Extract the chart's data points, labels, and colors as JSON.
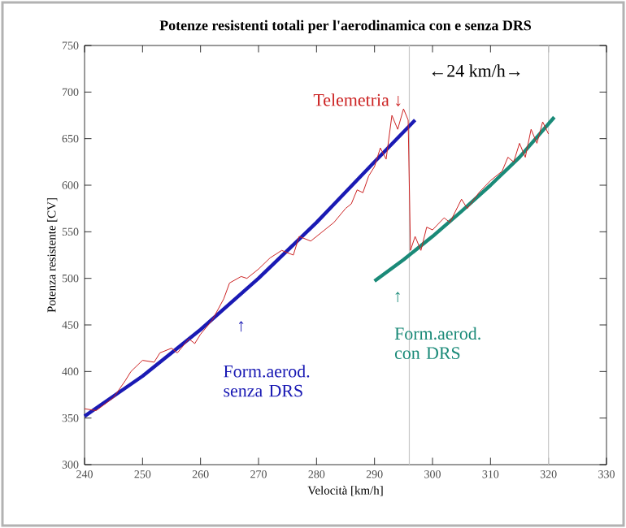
{
  "chart_data": {
    "type": "line",
    "title": "Potenze resistenti totali per l'aerodinamica con e senza DRS",
    "xlabel": "Velocità  [km/h]",
    "ylabel": "Potenza resistente  [CV]",
    "xlim": [
      240,
      330
    ],
    "xticks": [
      240,
      250,
      260,
      270,
      280,
      290,
      300,
      310,
      320,
      330
    ],
    "ylim": [
      300,
      750
    ],
    "yticks": [
      300,
      350,
      400,
      450,
      500,
      550,
      600,
      650,
      700,
      750
    ],
    "grid": false,
    "marker": "none",
    "line_style": "solid",
    "series": [
      {
        "color": "#cc2222",
        "x": [
          240,
          242,
          245,
          247,
          248,
          250,
          252,
          253,
          255,
          256,
          258,
          259,
          260,
          262,
          264,
          265,
          267,
          268,
          270,
          272,
          274,
          276,
          277,
          279,
          281,
          283,
          285,
          286,
          287,
          288,
          289,
          290,
          291,
          292,
          293,
          294,
          295,
          295.8,
          296.2,
          297,
          298,
          299,
          300,
          302,
          303,
          305,
          306,
          308,
          310,
          312,
          313,
          314,
          315,
          316,
          317,
          318,
          319,
          320
        ],
        "values": [
          360,
          358,
          372,
          390,
          400,
          412,
          410,
          420,
          425,
          420,
          435,
          430,
          440,
          455,
          478,
          495,
          502,
          500,
          510,
          522,
          530,
          525,
          545,
          540,
          550,
          560,
          575,
          580,
          595,
          592,
          610,
          620,
          640,
          628,
          675,
          660,
          682,
          670,
          530,
          545,
          530,
          555,
          552,
          565,
          560,
          585,
          575,
          592,
          605,
          615,
          630,
          625,
          645,
          630,
          660,
          645,
          668,
          655
        ]
      },
      {
        "color": "#1a1ab4",
        "x": [
          240,
          250,
          260,
          270,
          280,
          290,
          297
        ],
        "values": [
          352,
          395,
          445,
          500,
          560,
          625,
          670
        ]
      },
      {
        "color": "#1a8a78",
        "x": [
          290,
          295,
          300,
          305,
          310,
          315,
          321
        ],
        "values": [
          497,
          520,
          545,
          572,
          600,
          630,
          673
        ]
      }
    ],
    "ref_lines": [
      {
        "axis": "x",
        "value": 296,
        "color": "#c8c8c8"
      },
      {
        "axis": "x",
        "value": 320,
        "color": "#c8c8c8"
      }
    ],
    "annotations": [
      "Telemetria ↓",
      "←24 km/h→",
      "↑",
      "Form.aerod. senza DRS",
      "↑",
      "Form.aerod. con DRS"
    ]
  }
}
